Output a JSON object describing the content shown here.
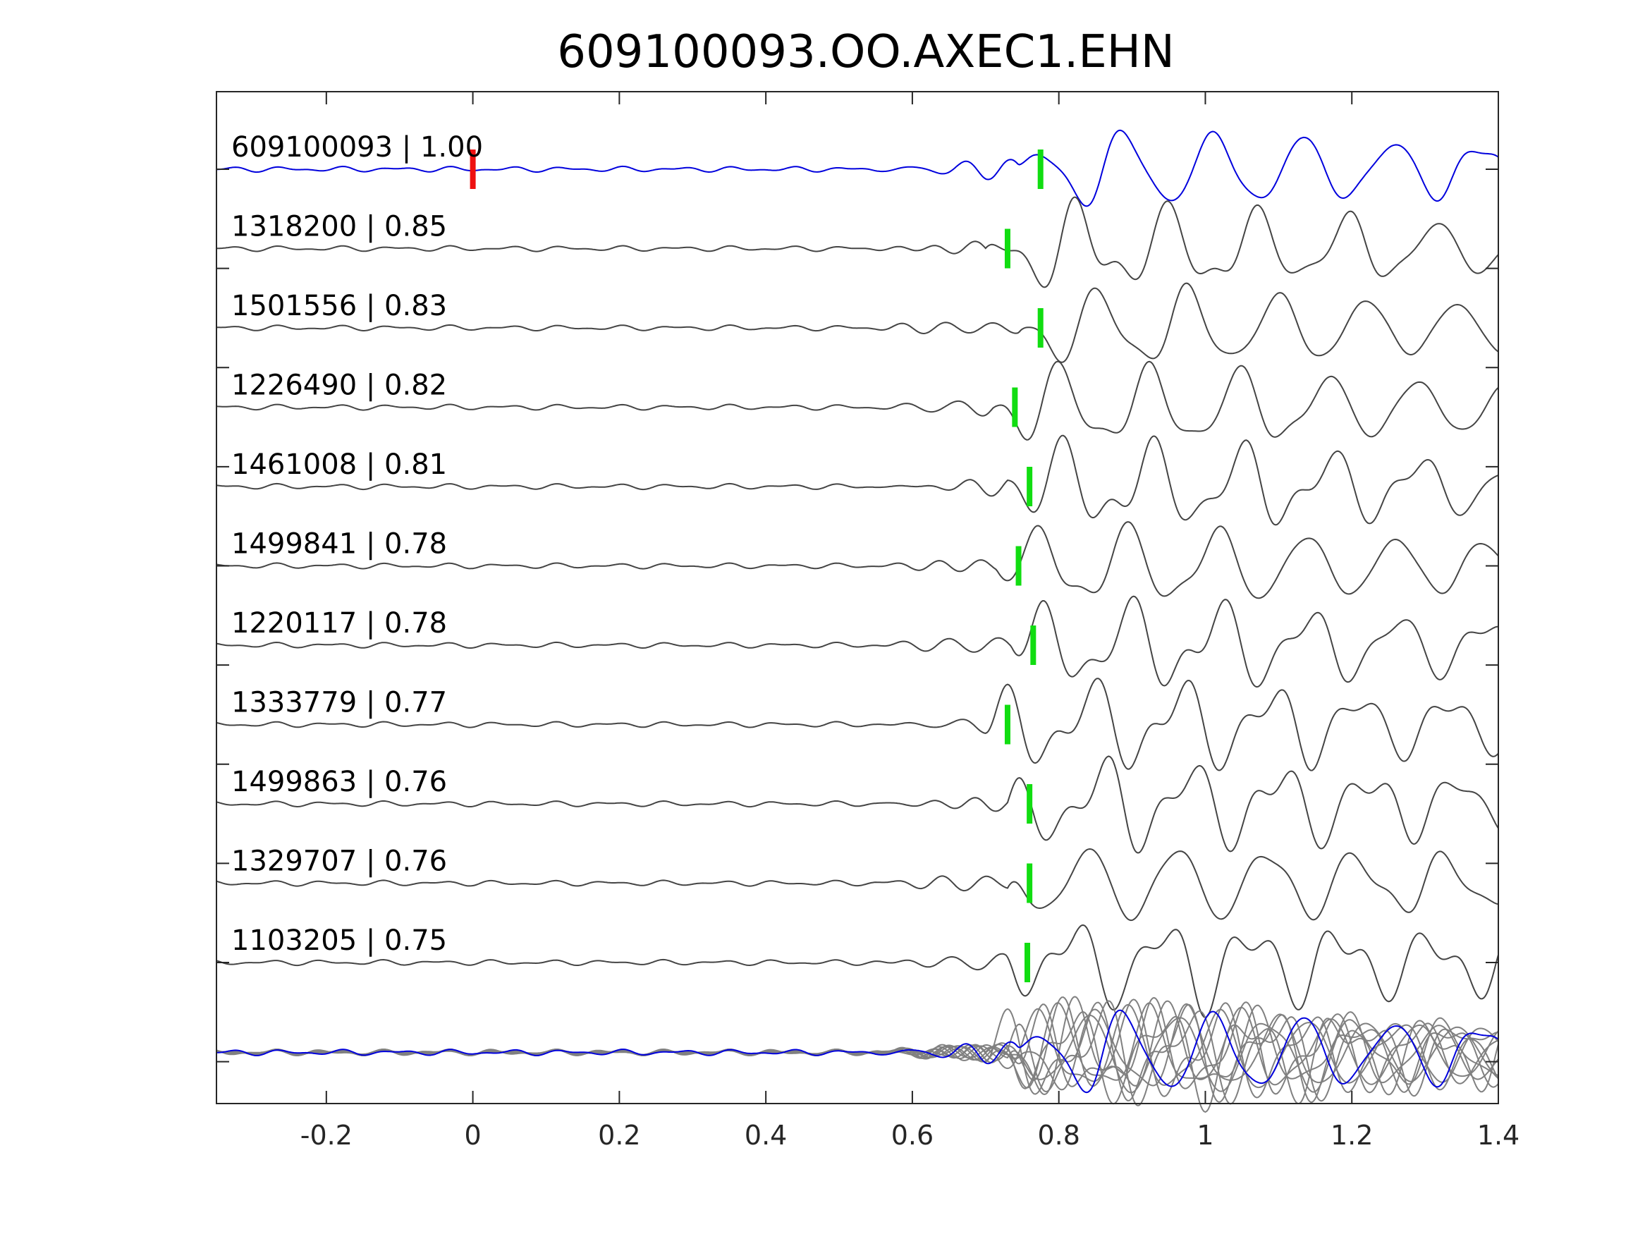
{
  "chart_data": {
    "type": "line",
    "title": "609100093.OO.AXEC1.EHN",
    "xlabel": "",
    "ylabel": "",
    "xlim": [
      -0.35,
      1.4
    ],
    "xticks": [
      -0.2,
      0,
      0.2,
      0.4,
      0.6,
      0.8,
      1,
      1.2,
      1.4
    ],
    "xtick_labels": [
      "-0.2",
      "0",
      "0.2",
      "0.4",
      "0.6",
      "0.8",
      "1",
      "1.2",
      "1.4"
    ],
    "grid": false,
    "legend": "none",
    "colors": {
      "template": "#0000dd",
      "match": "#444444",
      "overlay_match": "#808080",
      "origin_pick": "#ee1111",
      "arrival_pick": "#11dd11"
    },
    "reference_pick_time": 0.0,
    "traces": [
      {
        "label": "609100093 | 1.00",
        "id": "609100093",
        "correlation": 1.0,
        "pick": 0.775,
        "template": true
      },
      {
        "label": "1318200 | 0.85",
        "id": "1318200",
        "correlation": 0.85,
        "pick": 0.73
      },
      {
        "label": "1501556 | 0.83",
        "id": "1501556",
        "correlation": 0.83,
        "pick": 0.775
      },
      {
        "label": "1226490 | 0.82",
        "id": "1226490",
        "correlation": 0.82,
        "pick": 0.74
      },
      {
        "label": "1461008 | 0.81",
        "id": "1461008",
        "correlation": 0.81,
        "pick": 0.76
      },
      {
        "label": "1499841 | 0.78",
        "id": "1499841",
        "correlation": 0.78,
        "pick": 0.745
      },
      {
        "label": "1220117 | 0.78",
        "id": "1220117",
        "correlation": 0.78,
        "pick": 0.765
      },
      {
        "label": "1333779 | 0.77",
        "id": "1333779",
        "correlation": 0.77,
        "pick": 0.73
      },
      {
        "label": "1499863 | 0.76",
        "id": "1499863",
        "correlation": 0.76,
        "pick": 0.76
      },
      {
        "label": "1329707 | 0.76",
        "id": "1329707",
        "correlation": 0.76,
        "pick": 0.76
      },
      {
        "label": "1103205 | 0.75",
        "id": "1103205",
        "correlation": 0.75,
        "pick": 0.757
      }
    ]
  }
}
